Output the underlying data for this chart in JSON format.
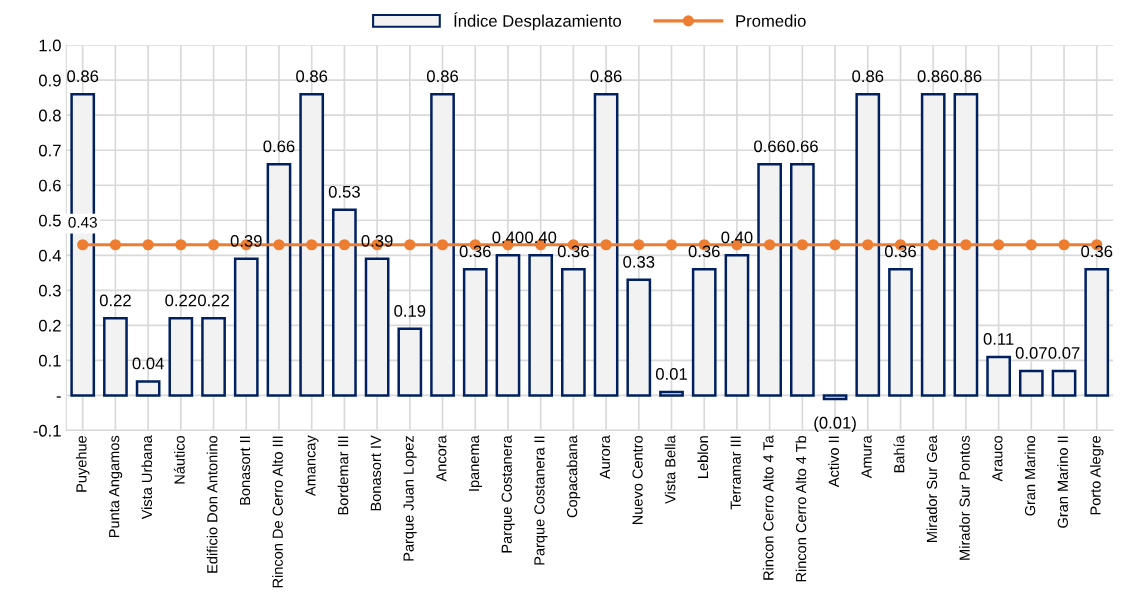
{
  "chart_data": {
    "type": "bar",
    "categories": [
      "Puyehue",
      "Punta Angamos",
      "Vista Urbana",
      "Náutico",
      "Edificio Don Antonino",
      "Bonasort II",
      "Rincon De Cerro Alto III",
      "Amancay",
      "Bordemar III",
      "Bonasort IV",
      "Parque Juan Lopez",
      "Ancora",
      "Ipanema",
      "Parque Costanera",
      "Parque Costanera II",
      "Copacabana",
      "Aurora",
      "Nuevo Centro",
      "Vista Bella",
      "Leblon",
      "Terramar III",
      "Rincon Cerro Alto 4 Ta",
      "Rincon Cerro Alto 4 Tb",
      "Activo II",
      "Amura",
      "Bahía",
      "Mirador Sur Gea",
      "Mirador Sur Pontos",
      "Arauco",
      "Gran Marino",
      "Gran Marino II",
      "Porto Alegre"
    ],
    "series": [
      {
        "name": "Índice Desplazamiento",
        "color": "#002060",
        "values": [
          0.86,
          0.22,
          0.04,
          0.22,
          0.22,
          0.39,
          0.66,
          0.86,
          0.53,
          0.39,
          0.19,
          0.86,
          0.36,
          0.4,
          0.4,
          0.36,
          0.86,
          0.33,
          0.01,
          0.36,
          0.4,
          0.66,
          0.66,
          -0.01,
          0.86,
          0.36,
          0.86,
          0.86,
          0.11,
          0.07,
          0.07,
          0.36
        ],
        "value_labels": [
          "0.86",
          "0.22",
          "0.04",
          "0.22",
          "0.22",
          "0.39",
          "0.66",
          "0.86",
          "0.53",
          "0.39",
          "0.19",
          "0.86",
          "0.36",
          "0.40",
          "0.40",
          "0.36",
          "0.86",
          "0.33",
          "0.01",
          "0.36",
          "0.40",
          "0.66",
          "0.66",
          "(0.01)",
          "0.86",
          "0.36",
          "0.86",
          "0.86",
          "0.11",
          "0.07",
          "0.07",
          "0.36"
        ]
      },
      {
        "name": "Promedio",
        "type": "line",
        "color": "#ed7d31",
        "marker": "circle",
        "values": [
          0.43,
          0.43,
          0.43,
          0.43,
          0.43,
          0.43,
          0.43,
          0.43,
          0.43,
          0.43,
          0.43,
          0.43,
          0.43,
          0.43,
          0.43,
          0.43,
          0.43,
          0.43,
          0.43,
          0.43,
          0.43,
          0.43,
          0.43,
          0.43,
          0.43,
          0.43,
          0.43,
          0.43,
          0.43,
          0.43,
          0.43,
          0.43
        ],
        "value_labels": [
          "0.43",
          null,
          null,
          null,
          null,
          null,
          null,
          null,
          null,
          null,
          null,
          null,
          null,
          null,
          null,
          null,
          null,
          null,
          null,
          null,
          null,
          null,
          null,
          null,
          null,
          null,
          null,
          null,
          null,
          null,
          null,
          null
        ]
      }
    ],
    "ylim": [
      -0.1,
      1.0
    ],
    "yticks": [
      -0.1,
      {
        "value": 0,
        "label": "-"
      },
      0.1,
      0.2,
      0.3,
      0.4,
      0.5,
      0.6,
      0.7,
      0.8,
      0.9,
      {
        "value": 1.0,
        "label": "1.0"
      }
    ],
    "grid": true,
    "legend": "top"
  }
}
